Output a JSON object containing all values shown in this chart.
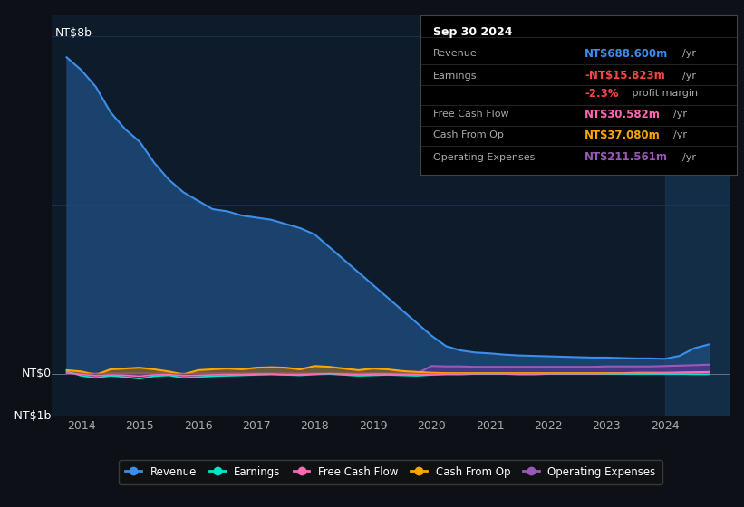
{
  "bg_color": "#0d1117",
  "plot_bg_color": "#0d1b2a",
  "grid_color": "#1e3a5f",
  "title_box": {
    "date": "Sep 30 2024",
    "rows": [
      {
        "label": "Revenue",
        "value": "NT$688.600m",
        "unit": "/yr",
        "value_color": "#3b8eea"
      },
      {
        "label": "Earnings",
        "value": "-NT$15.823m",
        "unit": "/yr",
        "value_color": "#ff4444"
      },
      {
        "label": "",
        "value": "-2.3%",
        "unit": " profit margin",
        "value_color": "#ff4444"
      },
      {
        "label": "Free Cash Flow",
        "value": "NT$30.582m",
        "unit": "/yr",
        "value_color": "#ff69b4"
      },
      {
        "label": "Cash From Op",
        "value": "NT$37.080m",
        "unit": "/yr",
        "value_color": "#ffa500"
      },
      {
        "label": "Operating Expenses",
        "value": "NT$211.561m",
        "unit": "/yr",
        "value_color": "#9b59b6"
      }
    ]
  },
  "ylabel_top": "NT$8b",
  "ylabel_zero": "NT$0",
  "ylabel_bottom": "-NT$1b",
  "legend": [
    {
      "label": "Revenue",
      "color": "#3b8eea"
    },
    {
      "label": "Earnings",
      "color": "#00e5cc"
    },
    {
      "label": "Free Cash Flow",
      "color": "#ff69b4"
    },
    {
      "label": "Cash From Op",
      "color": "#ffa500"
    },
    {
      "label": "Operating Expenses",
      "color": "#9b59b6"
    }
  ],
  "years": [
    2013.75,
    2014.0,
    2014.25,
    2014.5,
    2014.75,
    2015.0,
    2015.25,
    2015.5,
    2015.75,
    2016.0,
    2016.25,
    2016.5,
    2016.75,
    2017.0,
    2017.25,
    2017.5,
    2017.75,
    2018.0,
    2018.25,
    2018.5,
    2018.75,
    2019.0,
    2019.25,
    2019.5,
    2019.75,
    2020.0,
    2020.25,
    2020.5,
    2020.75,
    2021.0,
    2021.25,
    2021.5,
    2021.75,
    2022.0,
    2022.25,
    2022.5,
    2022.75,
    2023.0,
    2023.25,
    2023.5,
    2023.75,
    2024.0,
    2024.25,
    2024.5,
    2024.75
  ],
  "revenue": [
    7.5,
    7.2,
    6.8,
    6.2,
    5.8,
    5.5,
    5.0,
    4.6,
    4.3,
    4.1,
    3.9,
    3.85,
    3.75,
    3.7,
    3.65,
    3.55,
    3.45,
    3.3,
    3.0,
    2.7,
    2.4,
    2.1,
    1.8,
    1.5,
    1.2,
    0.9,
    0.65,
    0.55,
    0.5,
    0.48,
    0.45,
    0.43,
    0.42,
    0.41,
    0.4,
    0.39,
    0.38,
    0.38,
    0.37,
    0.36,
    0.36,
    0.35,
    0.42,
    0.6,
    0.69
  ],
  "earnings": [
    0.05,
    -0.05,
    -0.1,
    -0.05,
    -0.08,
    -0.12,
    -0.06,
    -0.04,
    -0.1,
    -0.08,
    -0.06,
    -0.05,
    -0.04,
    -0.03,
    -0.02,
    -0.03,
    -0.04,
    -0.02,
    -0.01,
    -0.03,
    -0.05,
    -0.04,
    -0.03,
    -0.04,
    -0.05,
    -0.03,
    -0.02,
    -0.02,
    -0.01,
    -0.01,
    -0.01,
    -0.02,
    -0.02,
    -0.01,
    -0.01,
    -0.01,
    -0.01,
    -0.01,
    -0.01,
    -0.01,
    -0.01,
    -0.01,
    -0.01,
    -0.015,
    -0.016
  ],
  "free_cash_flow": [
    0.02,
    -0.02,
    -0.05,
    -0.03,
    -0.04,
    -0.06,
    -0.03,
    -0.02,
    -0.05,
    -0.04,
    -0.03,
    -0.02,
    -0.02,
    -0.01,
    -0.01,
    -0.02,
    -0.02,
    -0.01,
    0.0,
    -0.01,
    -0.02,
    -0.01,
    -0.01,
    -0.02,
    -0.02,
    -0.02,
    -0.01,
    -0.01,
    -0.005,
    -0.005,
    -0.005,
    -0.01,
    -0.01,
    -0.005,
    -0.005,
    -0.005,
    -0.005,
    0.0,
    0.005,
    0.01,
    0.01,
    0.015,
    0.02,
    0.025,
    0.031
  ],
  "cash_from_op": [
    0.08,
    0.05,
    -0.03,
    0.1,
    0.12,
    0.14,
    0.1,
    0.05,
    -0.02,
    0.08,
    0.1,
    0.12,
    0.1,
    0.14,
    0.15,
    0.14,
    0.1,
    0.18,
    0.16,
    0.12,
    0.08,
    0.12,
    0.1,
    0.06,
    0.04,
    0.02,
    0.01,
    0.01,
    0.01,
    0.01,
    0.01,
    0.01,
    0.01,
    0.01,
    0.01,
    0.01,
    0.01,
    0.01,
    0.01,
    0.02,
    0.02,
    0.02,
    0.025,
    0.03,
    0.037
  ],
  "op_expenses": [
    0.0,
    0.0,
    0.0,
    0.0,
    0.0,
    0.0,
    0.0,
    0.0,
    0.0,
    0.0,
    0.0,
    0.0,
    0.0,
    0.0,
    0.0,
    0.0,
    0.0,
    0.0,
    0.0,
    0.0,
    0.0,
    0.0,
    0.0,
    0.0,
    0.0,
    0.18,
    0.17,
    0.17,
    0.16,
    0.16,
    0.16,
    0.16,
    0.16,
    0.16,
    0.16,
    0.16,
    0.16,
    0.17,
    0.17,
    0.17,
    0.17,
    0.18,
    0.19,
    0.2,
    0.212
  ],
  "xlim": [
    2013.5,
    2025.1
  ],
  "ylim": [
    -1.0,
    8.5
  ],
  "xticks": [
    2014,
    2015,
    2016,
    2017,
    2018,
    2019,
    2020,
    2021,
    2022,
    2023,
    2024
  ],
  "highlight_x_start": 2024.0,
  "highlight_x_end": 2025.1
}
